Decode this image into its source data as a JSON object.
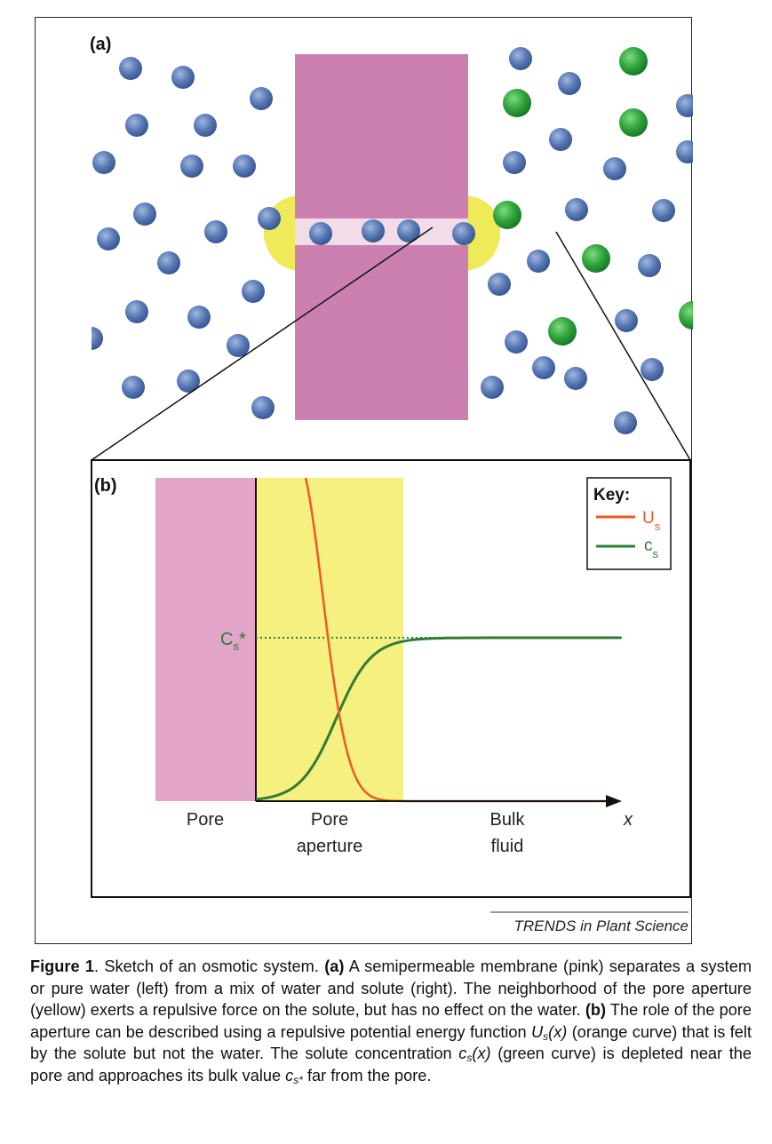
{
  "panel_a": {
    "label": "(a)",
    "colors": {
      "membrane": "#cc80b0",
      "pore_channel": "#f2dcea",
      "aperture": "#eeea5a",
      "water": "#5b7db8",
      "solute": "#2e9e3e"
    }
  },
  "panel_b": {
    "label": "(b)",
    "key": {
      "title": "Key:",
      "items": [
        {
          "symbol": "U",
          "subscript": "s",
          "color": "#ee5a24"
        },
        {
          "symbol": "c",
          "subscript": "s",
          "color": "#2e7d32"
        }
      ]
    },
    "cs_star_label": {
      "symbol": "C",
      "subscript": "s",
      "suffix": "*"
    },
    "region_labels": {
      "pore": "Pore",
      "aperture_line1": "Pore",
      "aperture_line2": "aperture",
      "bulk_line1": "Bulk",
      "bulk_line2": "fluid",
      "x_axis": "x"
    },
    "colors": {
      "pore": "#e2a4c8",
      "aperture": "#f5f080"
    }
  },
  "chart_data": {
    "type": "line",
    "title": "",
    "xlabel": "x",
    "ylabel": "",
    "regions": [
      "Pore",
      "Pore aperture",
      "Bulk fluid"
    ],
    "series": [
      {
        "name": "U_s",
        "description": "repulsive potential energy, large at pore aperture, decays to 0 in bulk fluid",
        "color": "#ee5a24"
      },
      {
        "name": "c_s",
        "description": "solute concentration, 0 at pore, rises to bulk value c_s*",
        "color": "#2e7d32"
      }
    ],
    "reference_lines": [
      {
        "label": "C_s*",
        "style": "dotted",
        "description": "bulk concentration"
      }
    ]
  },
  "credit": "TRENDS in Plant Science",
  "caption": {
    "figure_label": "Figure 1",
    "seg1": ". Sketch of an osmotic system. ",
    "a_label": "(a)",
    "seg2": " A semipermeable membrane (pink) separates a system or pure water (left) from a mix of water and solute (right). The neighborhood of the pore aperture (yellow) exerts a repulsive force on the solute, but has no effect on the water. ",
    "b_label": "(b)",
    "seg3": " The role of the pore aperture can be described using a repulsive potential energy function ",
    "us_symbol": "U",
    "us_sub": "s",
    "us_arg": "(x)",
    "seg4": " (orange curve) that is felt by the solute but not the water. The solute concentration ",
    "cs_symbol": "c",
    "cs_sub": "s",
    "cs_arg": "(x)",
    "seg5": " (green curve) is depleted near the pore and approaches its bulk value ",
    "csstar_symbol": "c",
    "csstar_sub": "s*",
    "seg6": " far from the pore."
  }
}
